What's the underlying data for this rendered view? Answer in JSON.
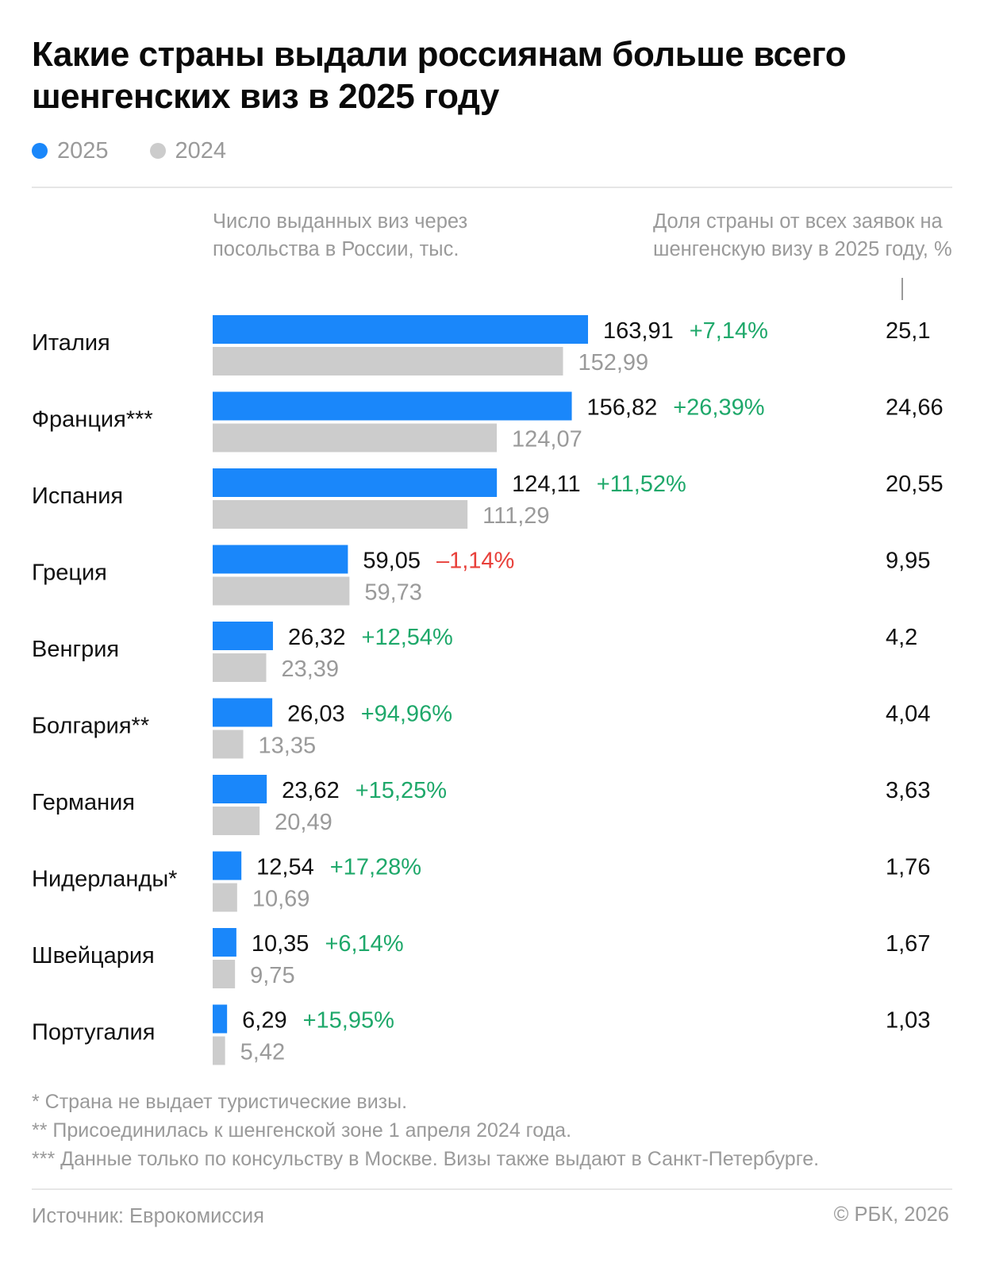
{
  "header": {
    "title": "Какие страны выдали россиянам больше всего шенгенских виз в 2025 году"
  },
  "legend": [
    {
      "label": "2025",
      "color": "#1a87fa"
    },
    {
      "label": "2024",
      "color": "#cccccc"
    }
  ],
  "columns": {
    "left_header": "Число выданных виз через посольства в России, тыс.",
    "right_header": "Доля страны от всех заявок на шенгенскую визу в 2025 году, %"
  },
  "colors": {
    "bar_2025": "#1a87fa",
    "bar_2024": "#cccccc",
    "positive_change": "#1ea86a",
    "negative_change": "#e8403a",
    "value_2024_text": "#9a9a9a",
    "value_2025_text": "#111111"
  },
  "chart_data": {
    "type": "bar",
    "orientation": "horizontal",
    "categories": [
      "Италия",
      "Франция***",
      "Испания",
      "Греция",
      "Венгрия",
      "Болгария**",
      "Германия",
      "Нидерланды*",
      "Швейцария",
      "Португалия"
    ],
    "series": [
      {
        "name": "2025",
        "values": [
          163.91,
          156.82,
          124.11,
          59.05,
          26.32,
          26.03,
          23.62,
          12.54,
          10.35,
          6.29
        ]
      },
      {
        "name": "2024",
        "values": [
          152.99,
          124.07,
          111.29,
          59.73,
          23.39,
          13.35,
          20.49,
          10.69,
          9.75,
          5.42
        ]
      }
    ],
    "labels_2025": [
      "163,91",
      "156,82",
      "124,11",
      "59,05",
      "26,32",
      "26,03",
      "23,62",
      "12,54",
      "10,35",
      "6,29"
    ],
    "labels_2024": [
      "152,99",
      "124,07",
      "111,29",
      "59,73",
      "23,39",
      "13,35",
      "20,49",
      "10,69",
      "9,75",
      "5,42"
    ],
    "changes": [
      "+7,14%",
      "+26,39%",
      "+11,52%",
      "–1,14%",
      "+12,54%",
      "+94,96%",
      "+15,25%",
      "+17,28%",
      "+6,14%",
      "+15,95%"
    ],
    "change_values": [
      7.14,
      26.39,
      11.52,
      -1.14,
      12.54,
      94.96,
      15.25,
      17.28,
      6.14,
      15.95
    ],
    "share_2025": [
      "25,1",
      "24,66",
      "20,55",
      "9,95",
      "4,2",
      "4,04",
      "3,63",
      "1,76",
      "1,67",
      "1,03"
    ],
    "xlim": [
      0,
      163.91
    ],
    "grid": false,
    "legend_position": "top-left"
  },
  "footnotes": [
    "* Страна не выдает туристические визы.",
    "** Присоединилась к шенгенской зоне 1 апреля 2024 года.",
    "*** Данные только по консульству в Москве. Визы также выдают в Санкт-Петербурге."
  ],
  "footer": {
    "source": "Источник: Еврокомиссия",
    "copyright": "© РБК, 2026"
  }
}
